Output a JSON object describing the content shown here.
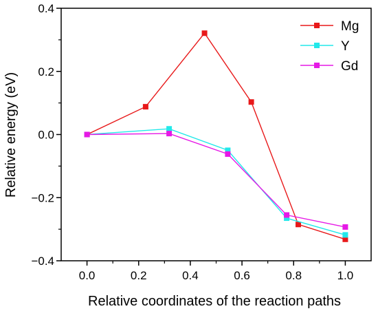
{
  "chart_data": {
    "type": "line",
    "xlabel": "Relative coordinates of the reaction paths",
    "ylabel": "Relative energy (eV)",
    "xlim": [
      -0.1,
      1.1
    ],
    "ylim": [
      -0.4,
      0.4
    ],
    "xticks": [
      "0.0",
      "0.2",
      "0.4",
      "0.6",
      "0.8",
      "1.0"
    ],
    "xtick_values": [
      0.0,
      0.2,
      0.4,
      0.6,
      0.8,
      1.0
    ],
    "yticks": [
      "−0.4",
      "−0.2",
      "0.0",
      "0.2",
      "0.4"
    ],
    "ytick_values": [
      -0.4,
      -0.2,
      0.0,
      0.2,
      0.4
    ],
    "grid": false,
    "legend_position": "top-right",
    "series": [
      {
        "name": "Mg",
        "color": "#e8191a",
        "marker": "square",
        "x": [
          0.0,
          0.227,
          0.455,
          0.636,
          0.818,
          1.0
        ],
        "y": [
          0.0,
          0.088,
          0.321,
          0.103,
          -0.285,
          -0.332
        ]
      },
      {
        "name": "Y",
        "color": "#22e8ea",
        "marker": "square",
        "x": [
          0.0,
          0.318,
          0.545,
          0.773,
          1.0
        ],
        "y": [
          0.0,
          0.018,
          -0.05,
          -0.265,
          -0.318
        ]
      },
      {
        "name": "Gd",
        "color": "#e619e6",
        "marker": "square",
        "x": [
          0.0,
          0.318,
          0.545,
          0.773,
          1.0
        ],
        "y": [
          0.0,
          0.003,
          -0.062,
          -0.255,
          -0.293
        ]
      }
    ]
  }
}
